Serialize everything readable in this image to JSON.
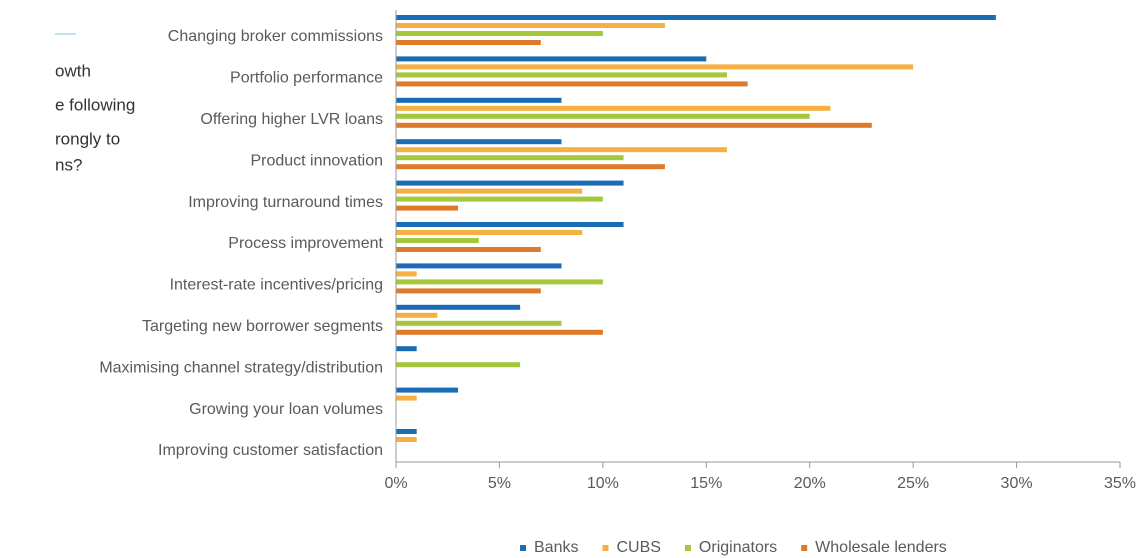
{
  "chart_data": {
    "type": "bar",
    "orientation": "horizontal",
    "annotations": [
      "owth",
      "e following",
      "rongly to",
      "ns?"
    ],
    "categories": [
      "Changing broker commissions",
      "Portfolio performance",
      "Offering higher LVR loans",
      "Product innovation",
      "Improving turnaround times",
      "Process improvement",
      "Interest-rate incentives/pricing",
      "Targeting new borrower segments",
      "Maximising channel strategy/distribution",
      "Growing your loan volumes",
      "Improving customer satisfaction"
    ],
    "series": [
      {
        "name": "Banks",
        "color": "#1a6db4",
        "values": [
          29,
          15,
          8,
          8,
          11,
          11,
          8,
          6,
          1,
          3,
          1
        ]
      },
      {
        "name": "CUBS",
        "color": "#f5b041",
        "values": [
          13,
          25,
          21,
          16,
          9,
          9,
          1,
          2,
          0,
          1,
          1
        ]
      },
      {
        "name": "Originators",
        "color": "#a5c83a",
        "values": [
          10,
          16,
          20,
          11,
          10,
          4,
          10,
          8,
          6,
          0,
          0
        ]
      },
      {
        "name": "Wholesale lenders",
        "color": "#e07a2b",
        "values": [
          7,
          17,
          23,
          13,
          3,
          7,
          7,
          10,
          0,
          0,
          0
        ]
      }
    ],
    "xlim": [
      0,
      35
    ],
    "xticks": [
      {
        "value": 0,
        "label": "0%"
      },
      {
        "value": 5,
        "label": "5%"
      },
      {
        "value": 10,
        "label": "10%"
      },
      {
        "value": 15,
        "label": "15%"
      },
      {
        "value": 20,
        "label": "20%"
      },
      {
        "value": 25,
        "label": "25%"
      },
      {
        "value": 30,
        "label": "30%"
      },
      {
        "value": 35,
        "label": "35%"
      }
    ],
    "legend": "bottom"
  }
}
